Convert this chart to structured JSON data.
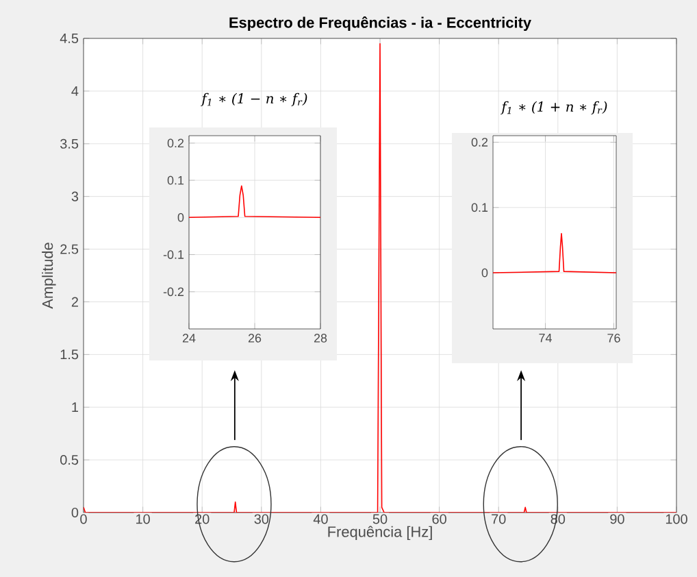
{
  "chart_data": [
    {
      "type": "line",
      "title": "Espectro de Frequências - ia - Eccentricity",
      "xlabel": "Frequência [Hz]",
      "ylabel": "Amplitude",
      "series": [
        {
          "color": "#ff0000",
          "x": [
            0,
            0.3,
            0.6,
            25.4,
            25.6,
            25.8,
            49.6,
            50,
            50.3,
            50.7,
            74.3,
            74.5,
            74.7,
            100
          ],
          "values": [
            0.05,
            0,
            0,
            0,
            0.1,
            0,
            0,
            4.45,
            0.05,
            0,
            0,
            0.05,
            0,
            0
          ]
        }
      ],
      "xlim": [
        0,
        100
      ],
      "ylim": [
        0,
        4.5
      ],
      "xticks": [
        0,
        10,
        20,
        30,
        40,
        50,
        60,
        70,
        80,
        90,
        100
      ],
      "yticks": [
        0,
        0.5,
        1,
        1.5,
        2,
        2.5,
        3,
        3.5,
        4,
        4.5
      ],
      "grid": true
    },
    {
      "type": "line",
      "title": "f$_{1}$ ∗ (1 − n ∗ f$_{r}$)",
      "series": [
        {
          "color": "#ff0000",
          "x": [
            24,
            25.5,
            25.55,
            25.6,
            25.65,
            25.7,
            28
          ],
          "values": [
            0,
            0.003,
            0.06,
            0.085,
            0.06,
            0.003,
            0
          ]
        }
      ],
      "xlim": [
        24,
        28
      ],
      "ylim": [
        -0.3,
        0.22
      ],
      "xticks": [
        24,
        26,
        28
      ],
      "yticks": [
        -0.2,
        -0.1,
        0,
        0.1,
        0.2
      ],
      "grid": true
    },
    {
      "type": "line",
      "title": "f$_{1}$ ∗ (1 + n ∗ f$_{r}$)",
      "series": [
        {
          "color": "#ff0000",
          "x": [
            72.47,
            74.4,
            74.44,
            74.47,
            74.5,
            74.54,
            76.07
          ],
          "values": [
            0,
            0.002,
            0.04,
            0.06,
            0.04,
            0.002,
            0
          ]
        }
      ],
      "xlim": [
        72.47,
        76.07
      ],
      "ylim": [
        -0.086,
        0.21
      ],
      "xticks": [
        74,
        76
      ],
      "yticks": [
        0,
        0.1,
        0.2
      ],
      "grid": true
    }
  ]
}
